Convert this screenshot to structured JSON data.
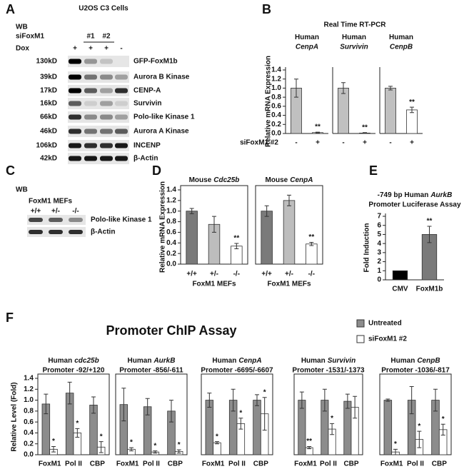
{
  "blot_a": {
    "label": "A",
    "wb": "WB",
    "title": "U2OS C3 Cells",
    "sirna": "siFoxM1",
    "sirna_ids": [
      "#1",
      "#2"
    ],
    "dox": "Dox",
    "dox_lanes": [
      "+",
      "+",
      "+",
      "-"
    ],
    "sizes": [
      "130kD",
      "39kD",
      "17kD",
      "16kD",
      "66kD",
      "46kD",
      "106kD",
      "42kD"
    ],
    "proteins": [
      "GFP-FoxM1b",
      "Aurora B Kinase",
      "CENP-A",
      "Survivin",
      "Polo-like Kinase 1",
      "Aurora A Kinase",
      "INCENP",
      "β-Actin"
    ]
  },
  "blot_c": {
    "label": "C",
    "wb": "WB",
    "group": "FoxM1 MEFs",
    "genotypes": [
      "+/+",
      "+/-",
      "-/-"
    ],
    "proteins": [
      "Polo-like Kinase 1",
      "β-Actin"
    ]
  },
  "panels": {
    "B": {
      "label": "B",
      "title": "Real Time RT-PCR",
      "ylabel": "Relative mRNA Expression",
      "xlabel": "siFoxM1 #2"
    },
    "D": {
      "label": "D",
      "ylabel": "Relative mRNA Expression"
    },
    "E": {
      "label": "E",
      "ylabel": "Fold Induction"
    },
    "F": {
      "label": "F",
      "title": "Promoter ChIP Assay",
      "ylabel": "Relative Level (Fold)"
    }
  },
  "chart_data": [
    {
      "type": "bar",
      "title": "Human",
      "gene": "CenpA",
      "categories": [
        "-",
        "+"
      ],
      "values": [
        1.0,
        0.02
      ],
      "errors": [
        0.2,
        0.01
      ],
      "colors": [
        "#c0c0c0",
        "#ffffff"
      ],
      "sig": [
        null,
        "**"
      ],
      "ylim": [
        0,
        1.4
      ],
      "yticks": [
        {
          "value": 0,
          "label": "0.0"
        },
        0.2,
        0.4,
        0.6,
        0.8,
        {
          "value": 1,
          "label": "1.0"
        },
        1.2,
        1.4
      ]
    },
    {
      "type": "bar",
      "title": "Human",
      "gene": "Survivin",
      "categories": [
        "-",
        "+"
      ],
      "values": [
        1.0,
        0.01
      ],
      "errors": [
        0.12,
        0.01
      ],
      "colors": [
        "#c0c0c0",
        "#ffffff"
      ],
      "sig": [
        null,
        "**"
      ],
      "ylim": [
        0,
        1.4
      ]
    },
    {
      "type": "bar",
      "title": "Human",
      "gene": "CenpB",
      "categories": [
        "-",
        "+"
      ],
      "values": [
        1.0,
        0.52
      ],
      "errors": [
        0.04,
        0.06
      ],
      "colors": [
        "#c0c0c0",
        "#ffffff"
      ],
      "sig": [
        null,
        "**"
      ],
      "ylim": [
        0,
        1.4
      ]
    },
    {
      "type": "bar",
      "title": "Mouse",
      "gene": "Cdc25b",
      "xlabel": "FoxM1 MEFs",
      "categories": [
        "+/+",
        "+/-",
        "-/-"
      ],
      "values": [
        1.0,
        0.75,
        0.34
      ],
      "errors": [
        0.05,
        0.15,
        0.05
      ],
      "colors": [
        "#7a7a7a",
        "#bdbdbd",
        "#ffffff"
      ],
      "sig": [
        null,
        null,
        "**"
      ],
      "ylim": [
        0,
        1.4
      ],
      "yticks": [
        {
          "value": 0,
          "label": "0.0"
        },
        0.2,
        0.4,
        0.6,
        0.8,
        {
          "value": 1,
          "label": "1.0"
        },
        1.2,
        1.4
      ]
    },
    {
      "type": "bar",
      "title": "Mouse",
      "gene": "CenpA",
      "xlabel": "FoxM1 MEFs",
      "categories": [
        "+/+",
        "+/-",
        "-/-"
      ],
      "values": [
        1.0,
        1.2,
        0.38
      ],
      "errors": [
        0.1,
        0.1,
        0.03
      ],
      "colors": [
        "#7a7a7a",
        "#bdbdbd",
        "#ffffff"
      ],
      "sig": [
        null,
        null,
        "**"
      ],
      "ylim": [
        0,
        1.4
      ]
    },
    {
      "type": "bar",
      "title": "-749 bp Human",
      "gene": "AurkB",
      "subtitle": "Promoter Luciferase Assay",
      "categories": [
        "CMV",
        "FoxM1b"
      ],
      "values": [
        1,
        5
      ],
      "errors": [
        null,
        0.9
      ],
      "colors": [
        "#000000",
        "#7a7a7a"
      ],
      "sig": [
        null,
        "**"
      ],
      "ylim": [
        0,
        7
      ],
      "yticks": [
        0,
        1,
        2,
        3,
        4,
        5,
        6,
        7
      ]
    },
    {
      "type": "bar",
      "title": "Human",
      "gene": "cdc25b",
      "subtitle": "Promoter -92/+120",
      "categories": [
        "FoxM1",
        "Pol II",
        "CBP"
      ],
      "ylim": [
        0,
        1.4
      ],
      "yticks": [
        {
          "value": 0,
          "label": "0.0"
        },
        0.2,
        0.4,
        0.6,
        0.8,
        {
          "value": 1,
          "label": "1.0"
        },
        1.2,
        1.4
      ],
      "series": [
        {
          "name": "Untreated",
          "color": "#8c8c8c",
          "values": [
            0.93,
            1.13,
            0.91
          ],
          "errors": [
            0.18,
            0.2,
            0.15
          ],
          "sig": [
            null,
            null,
            null
          ]
        },
        {
          "name": "siFoxM1 #2",
          "color": "#ffffff",
          "values": [
            0.1,
            0.4,
            0.14
          ],
          "errors": [
            0.05,
            0.08,
            0.1
          ],
          "sig": [
            "*",
            "*",
            "*"
          ]
        }
      ]
    },
    {
      "type": "bar",
      "title": "Human",
      "gene": "AurkB",
      "subtitle": "Promoter -856/-611",
      "categories": [
        "FoxM1",
        "Pol II",
        "CBP"
      ],
      "ylim": [
        0,
        1.4
      ],
      "series": [
        {
          "name": "Untreated",
          "color": "#8c8c8c",
          "values": [
            0.92,
            0.88,
            0.8
          ],
          "errors": [
            0.3,
            0.15,
            0.2
          ],
          "sig": [
            null,
            null,
            null
          ]
        },
        {
          "name": "siFoxM1 #2",
          "color": "#ffffff",
          "values": [
            0.1,
            0.05,
            0.06
          ],
          "errors": [
            0.03,
            0.02,
            0.03
          ],
          "sig": [
            "*",
            "*",
            "*"
          ]
        }
      ]
    },
    {
      "type": "bar",
      "title": "Human",
      "gene": "CenpA",
      "subtitle": "Promoter -6695/-6607",
      "categories": [
        "FoxM1",
        "Pol II",
        "CBP"
      ],
      "ylim": [
        0,
        1.4
      ],
      "series": [
        {
          "name": "Untreated",
          "color": "#8c8c8c",
          "values": [
            1.0,
            1.0,
            1.0
          ],
          "errors": [
            0.13,
            0.2,
            0.1
          ],
          "sig": [
            null,
            null,
            null
          ]
        },
        {
          "name": "siFoxM1 #2",
          "color": "#ffffff",
          "values": [
            0.22,
            0.57,
            0.75
          ],
          "errors": [
            0.02,
            0.1,
            0.3
          ],
          "sig": [
            "*",
            "*",
            "*"
          ]
        }
      ]
    },
    {
      "type": "bar",
      "title": "Human",
      "gene": "Survivin",
      "subtitle": "Promoter -1531/-1373",
      "categories": [
        "FoxM1",
        "Pol II",
        "CBP"
      ],
      "ylim": [
        0,
        1.4
      ],
      "series": [
        {
          "name": "Untreated",
          "color": "#8c8c8c",
          "values": [
            1.0,
            1.0,
            0.98
          ],
          "errors": [
            0.15,
            0.2,
            0.13
          ],
          "sig": [
            null,
            null,
            null
          ]
        },
        {
          "name": "siFoxM1 #2",
          "color": "#ffffff",
          "values": [
            0.13,
            0.47,
            0.87
          ],
          "errors": [
            0.02,
            0.1,
            0.2
          ],
          "sig": [
            "**",
            "*",
            null
          ]
        }
      ]
    },
    {
      "type": "bar",
      "title": "Human",
      "gene": "CenpB",
      "subtitle": "Promoter -1036/-817",
      "categories": [
        "FoxM1",
        "Pol II",
        "CBP"
      ],
      "ylim": [
        0,
        1.4
      ],
      "series": [
        {
          "name": "Untreated",
          "color": "#8c8c8c",
          "values": [
            1.0,
            1.0,
            1.0
          ],
          "errors": [
            0.02,
            0.25,
            0.2
          ],
          "sig": [
            null,
            null,
            null
          ]
        },
        {
          "name": "siFoxM1 #2",
          "color": "#ffffff",
          "values": [
            0.05,
            0.28,
            0.46
          ],
          "errors": [
            0.05,
            0.15,
            0.1
          ],
          "sig": [
            "*",
            "*",
            "*"
          ]
        }
      ]
    }
  ]
}
